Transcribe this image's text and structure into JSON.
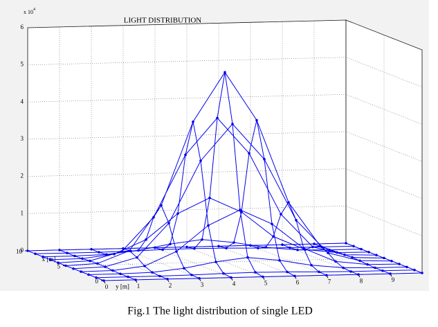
{
  "caption": "Fig.1 The light distribution of single LED",
  "chart_data": {
    "type": "surface3d",
    "title": "LIGHT DISTRIBUTION",
    "color": "#0000ee",
    "xlabel": "x [m]",
    "ylabel": "y [m]",
    "zunit": {
      "base": "x 10",
      "exponent": "4"
    },
    "xlim": [
      0,
      10
    ],
    "ylim": [
      0,
      10
    ],
    "zlim": [
      0,
      6
    ],
    "xticks": [
      0,
      5,
      10
    ],
    "yticks": [
      0,
      1,
      2,
      3,
      4,
      5,
      6,
      7,
      8,
      9
    ],
    "zticks": [
      0,
      1,
      2,
      3,
      4,
      5,
      6
    ],
    "grid": true,
    "x": [
      0,
      1,
      2,
      3,
      4,
      5,
      6,
      7,
      8,
      9,
      10
    ],
    "y": [
      0,
      1,
      2,
      3,
      4,
      5,
      6,
      7,
      8,
      9,
      10
    ],
    "z": [
      [
        0,
        0,
        0,
        0,
        0,
        0,
        0,
        0,
        0,
        0,
        0
      ],
      [
        0,
        0,
        0,
        0.01,
        0.03,
        0.04,
        0.03,
        0.01,
        0,
        0,
        0
      ],
      [
        0,
        0,
        0.02,
        0.11,
        0.26,
        0.36,
        0.26,
        0.11,
        0.02,
        0,
        0
      ],
      [
        0,
        0.01,
        0.11,
        0.48,
        1.16,
        1.56,
        1.16,
        0.48,
        0.11,
        0.01,
        0
      ],
      [
        0,
        0.03,
        0.26,
        1.16,
        2.82,
        3.79,
        2.82,
        1.16,
        0.26,
        0.03,
        0
      ],
      [
        0,
        0.04,
        0.36,
        1.56,
        3.79,
        5.1,
        3.79,
        1.56,
        0.36,
        0.04,
        0
      ],
      [
        0,
        0.03,
        0.26,
        1.16,
        2.82,
        3.79,
        2.82,
        1.16,
        0.26,
        0.03,
        0
      ],
      [
        0,
        0.01,
        0.11,
        0.48,
        1.16,
        1.56,
        1.16,
        0.48,
        0.11,
        0.01,
        0
      ],
      [
        0,
        0,
        0.02,
        0.11,
        0.26,
        0.36,
        0.26,
        0.11,
        0.02,
        0,
        0
      ],
      [
        0,
        0,
        0,
        0.01,
        0.03,
        0.04,
        0.03,
        0.01,
        0,
        0,
        0
      ],
      [
        0,
        0,
        0,
        0,
        0,
        0,
        0,
        0,
        0,
        0,
        0
      ]
    ]
  }
}
